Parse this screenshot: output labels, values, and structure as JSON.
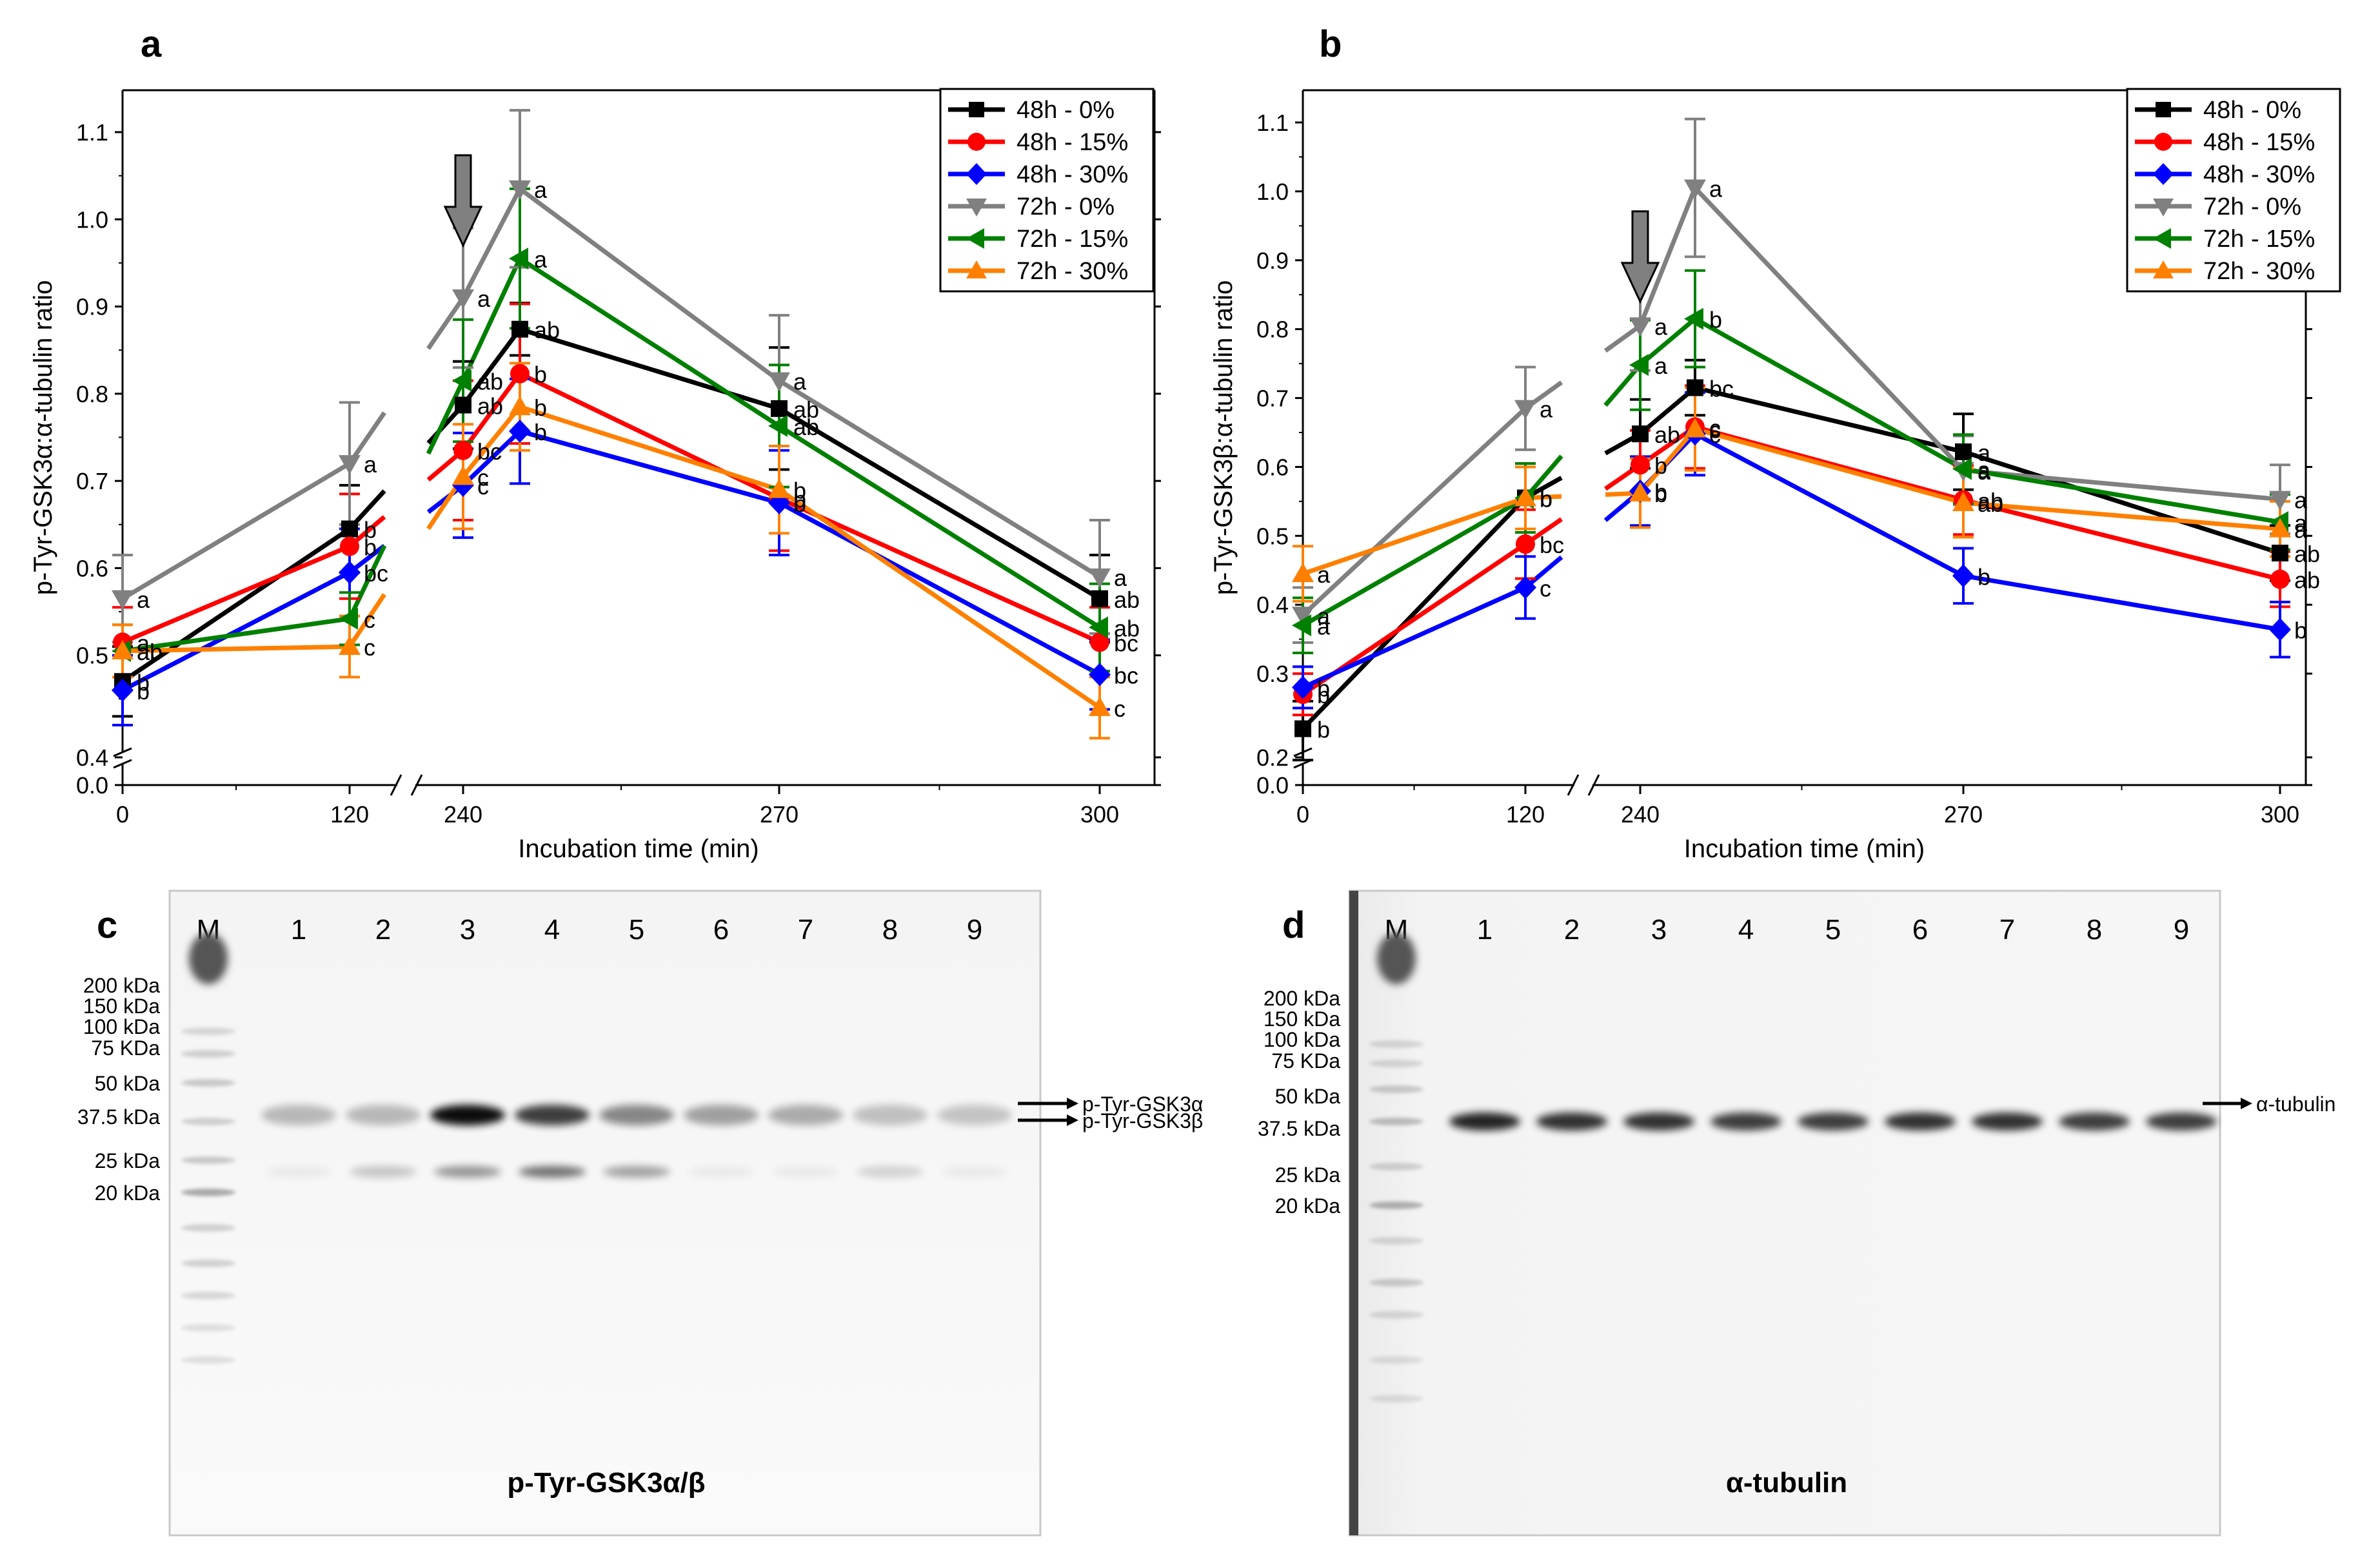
{
  "panels": {
    "a": {
      "letter": "a"
    },
    "b": {
      "letter": "b"
    },
    "c": {
      "letter": "c"
    },
    "d": {
      "letter": "d"
    }
  },
  "chart_data": [
    {
      "type": "line",
      "panel": "a",
      "xlabel": "Incubation time (min)",
      "ylabel": "p-Tyr-GSK3α:α-tubulin ratio",
      "x_ticks": [
        "0",
        "120",
        "240",
        "270",
        "300"
      ],
      "y_ticks": [
        "0.0",
        "0.4",
        "0.5",
        "0.6",
        "0.7",
        "0.8",
        "0.9",
        "1.0",
        "1.1"
      ],
      "ylim": [
        0.0,
        1.15
      ],
      "y_axis_break": [
        0.0,
        0.4
      ],
      "x_axis_break": [
        120,
        240
      ],
      "x": [
        0,
        120,
        240,
        255,
        270,
        300
      ],
      "annotation": "down-arrow at 240 min",
      "legend_position": "top-right",
      "series": [
        {
          "name": "48h - 0%",
          "color": "#000000",
          "marker": "square",
          "values": [
            0.47,
            0.645,
            0.787,
            0.874,
            0.783,
            0.565
          ],
          "errors": [
            0.04,
            0.05,
            0.05,
            0.03,
            0.07,
            0.05
          ],
          "letters": [
            "b",
            "b",
            "ab",
            "ab",
            "ab",
            "ab"
          ]
        },
        {
          "name": "48h - 15%",
          "color": "#ff0000",
          "marker": "circle",
          "values": [
            0.515,
            0.625,
            0.735,
            0.823,
            0.68,
            0.515
          ],
          "errors": [
            0.04,
            0.06,
            0.08,
            0.08,
            0.06,
            0.04
          ],
          "letters": [
            "a",
            "b",
            "bc",
            "b",
            "b",
            "bc"
          ]
        },
        {
          "name": "48h - 30%",
          "color": "#0000ff",
          "marker": "diamond",
          "values": [
            0.46,
            0.595,
            0.695,
            0.757,
            0.675,
            0.478
          ],
          "errors": [
            0.04,
            0.05,
            0.06,
            0.06,
            0.06,
            0.04
          ],
          "letters": [
            "b",
            "bc",
            "c",
            "b",
            "b",
            "bc"
          ]
        },
        {
          "name": "72h - 0%",
          "color": "#808080",
          "marker": "triangle-down",
          "values": [
            0.565,
            0.72,
            0.91,
            1.035,
            0.815,
            0.59
          ],
          "errors": [
            0.05,
            0.07,
            0.08,
            0.09,
            0.075,
            0.065
          ],
          "letters": [
            "a",
            "a",
            "a",
            "a",
            "a",
            "a"
          ]
        },
        {
          "name": "72h - 15%",
          "color": "#008000",
          "marker": "triangle-left",
          "values": [
            0.505,
            0.542,
            0.815,
            0.955,
            0.763,
            0.532
          ],
          "errors": [
            0.03,
            0.03,
            0.07,
            0.08,
            0.07,
            0.05
          ],
          "letters": [
            "ab",
            "c",
            "ab",
            "a",
            "ab",
            "ab"
          ]
        },
        {
          "name": "72h - 30%",
          "color": "#ff8000",
          "marker": "triangle-up",
          "values": [
            0.505,
            0.51,
            0.705,
            0.785,
            0.69,
            0.44
          ],
          "errors": [
            0.03,
            0.035,
            0.06,
            0.05,
            0.05,
            0.035
          ],
          "letters": [
            "ab",
            "c",
            "c",
            "b",
            "b",
            "c"
          ]
        }
      ]
    },
    {
      "type": "line",
      "panel": "b",
      "xlabel": "Incubation time (min)",
      "ylabel": "p-Tyr-GSK3β:α-tubulin ratio",
      "x_ticks": [
        "0",
        "120",
        "240",
        "270",
        "300"
      ],
      "y_ticks": [
        "0.0",
        "0.2",
        "0.3",
        "0.4",
        "0.5",
        "0.6",
        "0.7",
        "0.8",
        "0.9",
        "1.0",
        "1.1"
      ],
      "ylim": [
        0.0,
        1.15
      ],
      "y_axis_break": [
        0.0,
        0.2
      ],
      "x_axis_break": [
        120,
        240
      ],
      "x": [
        0,
        120,
        240,
        255,
        270,
        300
      ],
      "annotation": "down-arrow at 240 min",
      "legend_position": "top-right",
      "series": [
        {
          "name": "48h - 0%",
          "color": "#000000",
          "marker": "square",
          "values": [
            0.22,
            0.555,
            0.648,
            0.715,
            0.622,
            0.475
          ],
          "errors": [
            0.04,
            0.05,
            0.05,
            0.04,
            0.055,
            0.04
          ],
          "letters": [
            "b",
            "b",
            "ab",
            "bc",
            "a",
            "ab"
          ]
        },
        {
          "name": "48h - 15%",
          "color": "#ff0000",
          "marker": "circle",
          "values": [
            0.27,
            0.488,
            0.603,
            0.658,
            0.552,
            0.437
          ],
          "errors": [
            0.03,
            0.05,
            0.05,
            0.06,
            0.05,
            0.04
          ],
          "letters": [
            "b",
            "bc",
            "b",
            "c",
            "ab",
            "ab"
          ]
        },
        {
          "name": "48h - 30%",
          "color": "#0000ff",
          "marker": "diamond",
          "values": [
            0.28,
            0.425,
            0.565,
            0.648,
            0.442,
            0.364
          ],
          "errors": [
            0.03,
            0.045,
            0.05,
            0.06,
            0.04,
            0.04
          ],
          "letters": [
            "b",
            "c",
            "b",
            "c",
            "b",
            "b"
          ]
        },
        {
          "name": "72h - 0%",
          "color": "#808080",
          "marker": "triangle-down",
          "values": [
            0.385,
            0.685,
            0.805,
            1.005,
            0.595,
            0.553
          ],
          "errors": [
            0.04,
            0.06,
            0.065,
            0.1,
            0.05,
            0.05
          ],
          "letters": [
            "a",
            "a",
            "a",
            "a",
            "a",
            "a"
          ]
        },
        {
          "name": "72h - 15%",
          "color": "#008000",
          "marker": "triangle-left",
          "values": [
            0.37,
            0.555,
            0.748,
            0.815,
            0.597,
            0.52
          ],
          "errors": [
            0.04,
            0.05,
            0.065,
            0.07,
            0.05,
            0.04
          ],
          "letters": [
            "a",
            "b",
            "a",
            "b",
            "a",
            "a"
          ]
        },
        {
          "name": "72h - 30%",
          "color": "#ff8000",
          "marker": "triangle-up",
          "values": [
            0.445,
            0.555,
            0.562,
            0.655,
            0.548,
            0.51
          ],
          "errors": [
            0.04,
            0.045,
            0.05,
            0.06,
            0.05,
            0.04
          ],
          "letters": [
            "a",
            "b",
            "b",
            "c",
            "ab",
            "a"
          ]
        }
      ]
    }
  ],
  "blots": {
    "c": {
      "title": "p-Tyr-GSK3α/β",
      "marker_label": "M",
      "lanes": [
        "1",
        "2",
        "3",
        "4",
        "5",
        "6",
        "7",
        "8",
        "9"
      ],
      "ladder": [
        "200 kDa",
        "150 kDa",
        "100 kDa",
        "75 KDa",
        "50 kDa",
        "37.5 kDa",
        "25 kDa",
        "20 kDa"
      ],
      "band_labels": [
        "p-Tyr-GSK3α",
        "p-Tyr-GSK3β"
      ],
      "band_intensity": [
        0.25,
        0.25,
        0.95,
        0.75,
        0.45,
        0.35,
        0.3,
        0.22,
        0.2
      ],
      "lower_band_intensity": [
        0.05,
        0.2,
        0.4,
        0.55,
        0.35,
        0.05,
        0.05,
        0.15,
        0.05
      ]
    },
    "d": {
      "title": "α-tubulin",
      "marker_label": "M",
      "lanes": [
        "1",
        "2",
        "3",
        "4",
        "5",
        "6",
        "7",
        "8",
        "9"
      ],
      "ladder": [
        "200 kDa",
        "150 kDa",
        "100 kDa",
        "75 KDa",
        "50 kDa",
        "37.5 kDa",
        "25 kDa",
        "20 kDa"
      ],
      "band_labels": [
        "α-tubulin"
      ],
      "band_intensity": [
        0.85,
        0.8,
        0.8,
        0.75,
        0.75,
        0.8,
        0.8,
        0.75,
        0.75
      ]
    }
  }
}
